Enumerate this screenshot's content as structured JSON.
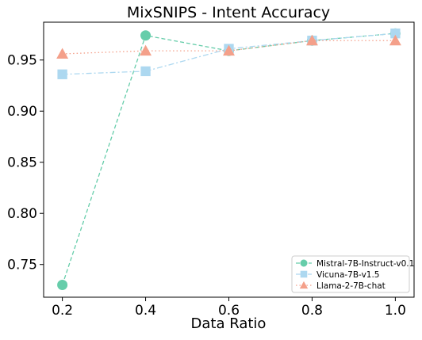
{
  "chart_data": {
    "type": "line",
    "title": "MixSNIPS - Intent Accuracy",
    "xlabel": "Data Ratio",
    "ylabel": "",
    "x": [
      0.2,
      0.4,
      0.6,
      0.8,
      1.0
    ],
    "xticks": [
      "0.2",
      "0.4",
      "0.6",
      "0.8",
      "1.0"
    ],
    "yticks": [
      "0.75",
      "0.80",
      "0.85",
      "0.90",
      "0.95"
    ],
    "ytick_values": [
      0.75,
      0.8,
      0.85,
      0.9,
      0.95
    ],
    "xlim": [
      0.155,
      1.045
    ],
    "ylim": [
      0.718,
      0.987
    ],
    "grid": false,
    "legend_position": "lower-right",
    "series": [
      {
        "name": "Mistral-7B-Instruct-v0.1",
        "marker": "circle",
        "dash": "dashed",
        "color": "#66CDAA",
        "values": [
          0.73,
          0.974,
          0.959,
          0.969,
          0.976
        ]
      },
      {
        "name": "Vicuna-7B-v1.5",
        "marker": "square",
        "dash": "dashdot",
        "color": "#ADD8F0",
        "values": [
          0.936,
          0.939,
          0.961,
          0.969,
          0.976
        ]
      },
      {
        "name": "Llama-2-7B-chat",
        "marker": "triangle",
        "dash": "dotted",
        "color": "#F4A08A",
        "values": [
          0.956,
          0.959,
          0.959,
          0.969,
          0.969
        ]
      }
    ]
  }
}
